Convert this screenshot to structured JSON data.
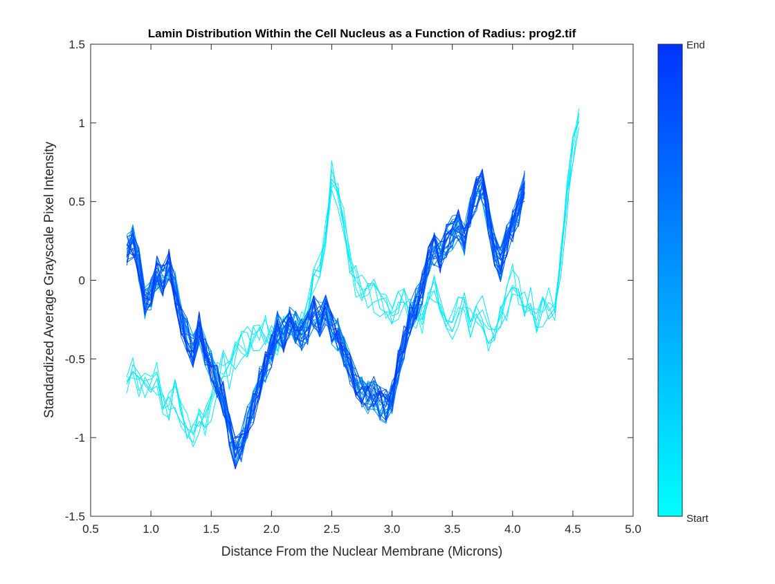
{
  "chart_data": {
    "type": "line",
    "title": "Lamin Distribution Within the Cell Nucleus as a Function of Radius: prog2.tif",
    "xlabel": "Distance From the Nuclear Membrane (Microns)",
    "ylabel": "Standardized Average Grayscale Pixel Intensity",
    "xlim": [
      0.5,
      5.0
    ],
    "ylim": [
      -1.5,
      1.5
    ],
    "xticks": [
      "0.5",
      "1.0",
      "1.5",
      "2.0",
      "2.5",
      "3.0",
      "3.5",
      "4.0",
      "4.5",
      "5.0"
    ],
    "yticks": [
      "1.5",
      "1",
      "0.5",
      "0",
      "-0.5",
      "-1",
      "-1.5"
    ],
    "grid": false,
    "legend": "none",
    "colorbar": {
      "label_top": "End",
      "label_bottom": "Start",
      "color_start": "#00FFFF",
      "color_end": "#0033FF"
    },
    "series_groups": [
      {
        "role": "start-traces (cyan)",
        "count": 6,
        "x": [
          0.8,
          0.85,
          0.9,
          0.95,
          1.0,
          1.05,
          1.1,
          1.15,
          1.2,
          1.25,
          1.3,
          1.35,
          1.4,
          1.45,
          1.5,
          1.55,
          1.6,
          1.65,
          1.7,
          1.75,
          1.8,
          1.85,
          1.9,
          1.95,
          2.0,
          2.05,
          2.1,
          2.15,
          2.2,
          2.25,
          2.3,
          2.35,
          2.4,
          2.45,
          2.5,
          2.55,
          2.6,
          2.65,
          2.7,
          2.75,
          2.8,
          2.85,
          2.9,
          2.95,
          3.0,
          3.05,
          3.1,
          3.15,
          3.2,
          3.25,
          3.3,
          3.35,
          3.4,
          3.45,
          3.5,
          3.55,
          3.6,
          3.65,
          3.7,
          3.75,
          3.8,
          3.85,
          3.9,
          3.95,
          4.0,
          4.05,
          4.1,
          4.15,
          4.2,
          4.25,
          4.3,
          4.35,
          4.4,
          4.45,
          4.5,
          4.55
        ],
        "y_mean": [
          -0.65,
          -0.58,
          -0.66,
          -0.7,
          -0.65,
          -0.62,
          -0.75,
          -0.8,
          -0.72,
          -0.85,
          -0.9,
          -0.95,
          -0.88,
          -0.92,
          -0.8,
          -0.62,
          -0.55,
          -0.6,
          -0.5,
          -0.42,
          -0.4,
          -0.38,
          -0.35,
          -0.33,
          -0.38,
          -0.42,
          -0.32,
          -0.35,
          -0.3,
          -0.25,
          -0.2,
          0.0,
          0.1,
          0.3,
          0.65,
          0.55,
          0.35,
          0.15,
          0.0,
          -0.05,
          -0.08,
          -0.1,
          -0.15,
          -0.2,
          -0.2,
          -0.15,
          -0.1,
          -0.18,
          -0.2,
          -0.25,
          -0.12,
          -0.05,
          -0.22,
          -0.25,
          -0.3,
          -0.2,
          -0.15,
          -0.28,
          -0.25,
          -0.2,
          -0.35,
          -0.3,
          -0.2,
          -0.15,
          0.0,
          -0.05,
          -0.15,
          -0.12,
          -0.25,
          -0.2,
          -0.15,
          -0.25,
          0.1,
          0.5,
          0.85,
          1.05
        ]
      },
      {
        "role": "middle/end traces (blue)",
        "count": 26,
        "x": [
          0.8,
          0.85,
          0.9,
          0.95,
          1.0,
          1.05,
          1.1,
          1.15,
          1.2,
          1.25,
          1.3,
          1.35,
          1.4,
          1.45,
          1.5,
          1.55,
          1.6,
          1.65,
          1.7,
          1.75,
          1.8,
          1.85,
          1.9,
          1.95,
          2.0,
          2.05,
          2.1,
          2.15,
          2.2,
          2.25,
          2.3,
          2.35,
          2.4,
          2.45,
          2.5,
          2.55,
          2.6,
          2.65,
          2.7,
          2.75,
          2.8,
          2.85,
          2.9,
          2.95,
          3.0,
          3.05,
          3.1,
          3.15,
          3.2,
          3.25,
          3.3,
          3.35,
          3.4,
          3.45,
          3.5,
          3.55,
          3.6,
          3.65,
          3.7,
          3.75,
          3.8,
          3.85,
          3.9,
          3.95,
          4.0,
          4.05,
          4.1
        ],
        "y_mean": [
          0.2,
          0.25,
          0.1,
          -0.15,
          -0.1,
          0.05,
          0.0,
          0.1,
          -0.05,
          -0.25,
          -0.35,
          -0.45,
          -0.3,
          -0.45,
          -0.55,
          -0.65,
          -0.75,
          -0.95,
          -1.1,
          -1.05,
          -0.9,
          -0.8,
          -0.65,
          -0.55,
          -0.45,
          -0.3,
          -0.35,
          -0.25,
          -0.3,
          -0.35,
          -0.3,
          -0.2,
          -0.25,
          -0.2,
          -0.3,
          -0.35,
          -0.45,
          -0.55,
          -0.65,
          -0.7,
          -0.75,
          -0.72,
          -0.78,
          -0.8,
          -0.75,
          -0.55,
          -0.4,
          -0.25,
          -0.15,
          -0.05,
          0.1,
          0.2,
          0.15,
          0.25,
          0.3,
          0.35,
          0.25,
          0.45,
          0.55,
          0.6,
          0.4,
          0.2,
          0.1,
          0.25,
          0.35,
          0.45,
          0.6
        ]
      }
    ]
  }
}
